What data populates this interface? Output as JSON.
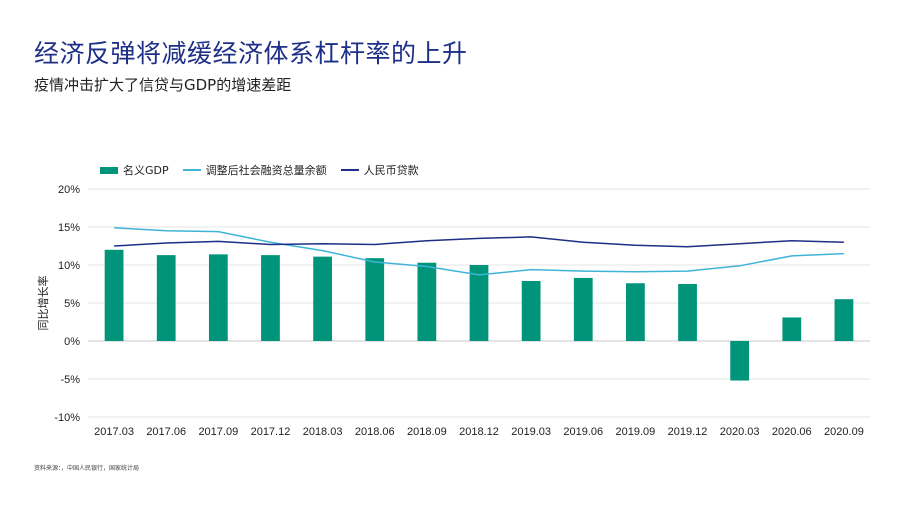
{
  "header": {
    "title": "经济反弹将减缓经济体系杠杆率的上升",
    "subtitle": "疫情冲击扩大了信贷与GDP的增速差距"
  },
  "footer": {
    "source": "资料来源：，中国人民银行，国家统计局"
  },
  "colors": {
    "gdp_bar": "#00957a",
    "tsf_line": "#3fb4d8",
    "loan_line": "#1d2f86",
    "title": "#1d2f86"
  },
  "chart_data": {
    "type": "bar",
    "title": "",
    "xlabel": "",
    "ylabel": "同比增长率",
    "ylim": [
      -10,
      20
    ],
    "yticks": [
      -10,
      -5,
      0,
      5,
      10,
      15,
      20
    ],
    "ytick_labels": [
      "-10%",
      "-5%",
      "0%",
      "5%",
      "10%",
      "15%",
      "20%"
    ],
    "grid": true,
    "legend_position": "top-left",
    "categories": [
      "2017.03",
      "2017.06",
      "2017.09",
      "2017.12",
      "2018.03",
      "2018.06",
      "2018.09",
      "2018.12",
      "2019.03",
      "2019.06",
      "2019.09",
      "2019.12",
      "2020.03",
      "2020.06",
      "2020.09"
    ],
    "series": [
      {
        "name": "名义GDP",
        "type": "bar",
        "values": [
          12.0,
          11.3,
          11.4,
          11.3,
          11.1,
          10.9,
          10.3,
          10.0,
          7.9,
          8.3,
          7.6,
          7.5,
          -5.2,
          3.1,
          5.5
        ]
      },
      {
        "name": "调整后社会融资总量余额",
        "type": "line",
        "values": [
          14.9,
          14.5,
          14.4,
          13.0,
          11.9,
          10.4,
          9.8,
          8.7,
          9.4,
          9.2,
          9.1,
          9.2,
          9.9,
          11.2,
          11.5
        ]
      },
      {
        "name": "人民币贷款",
        "type": "line",
        "values": [
          12.5,
          12.9,
          13.1,
          12.7,
          12.8,
          12.7,
          13.2,
          13.5,
          13.7,
          13.0,
          12.6,
          12.4,
          12.8,
          13.2,
          13.0
        ]
      }
    ]
  }
}
